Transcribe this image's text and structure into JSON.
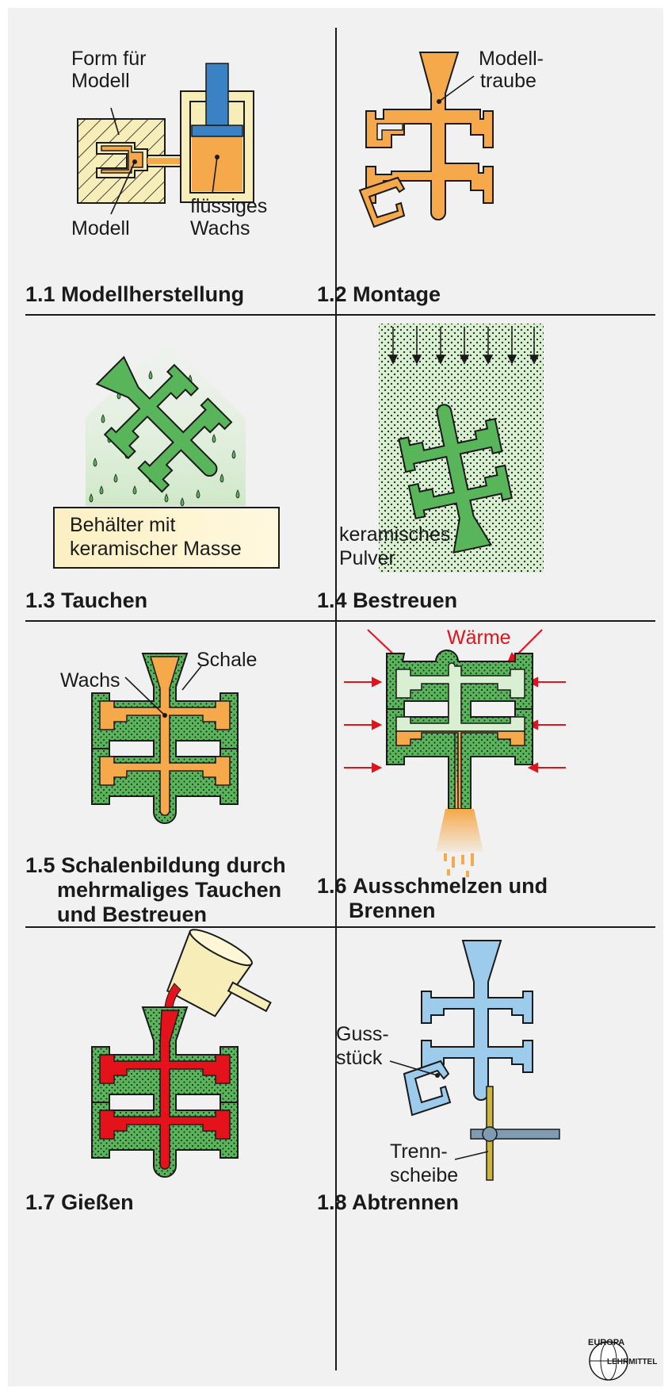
{
  "steps": [
    {
      "number": "1.1",
      "title": "Modellherstellung",
      "labels": {
        "form": [
          "Form für",
          "Modell"
        ],
        "model": "Modell",
        "wax": [
          "flüssiges",
          "Wachs"
        ]
      }
    },
    {
      "number": "1.2",
      "title": "Montage",
      "labels": {
        "cluster": [
          "Modell-",
          "traube"
        ]
      }
    },
    {
      "number": "1.3",
      "title": "Tauchen",
      "labels": {
        "container": [
          "Behälter mit",
          "keramischer Masse"
        ]
      }
    },
    {
      "number": "1.4",
      "title": "Bestreuen",
      "labels": {
        "powder": [
          "keramisches",
          "Pulver"
        ]
      }
    },
    {
      "number": "1.5",
      "title_lines": [
        "Schalenbildung durch",
        "mehrmaliges Tauchen",
        "und Bestreuen"
      ],
      "labels": {
        "wax": "Wachs",
        "shell": "Schale"
      }
    },
    {
      "number": "1.6",
      "title_lines": [
        "Ausschmelzen und",
        "Brennen"
      ],
      "labels": {
        "heat": "Wärme"
      }
    },
    {
      "number": "1.7",
      "title": "Gießen",
      "labels": {}
    },
    {
      "number": "1.8",
      "title": "Abtrennen",
      "labels": {
        "casting": [
          "Guss-",
          "stück"
        ],
        "disc": [
          "Trenn-",
          "scheibe"
        ]
      }
    }
  ],
  "logo": {
    "top": "EUROPA",
    "bottom": "LEHRMITTEL"
  },
  "colors": {
    "wax": "#f5a94a",
    "ceramic": "#59b55a",
    "ceramic_light": "#d8efd2",
    "metal": "#e3121b",
    "cast": "#9dcbeb",
    "heat": "#e3121b",
    "panel": "#f1f1f1",
    "line": "#1a1a1a"
  }
}
